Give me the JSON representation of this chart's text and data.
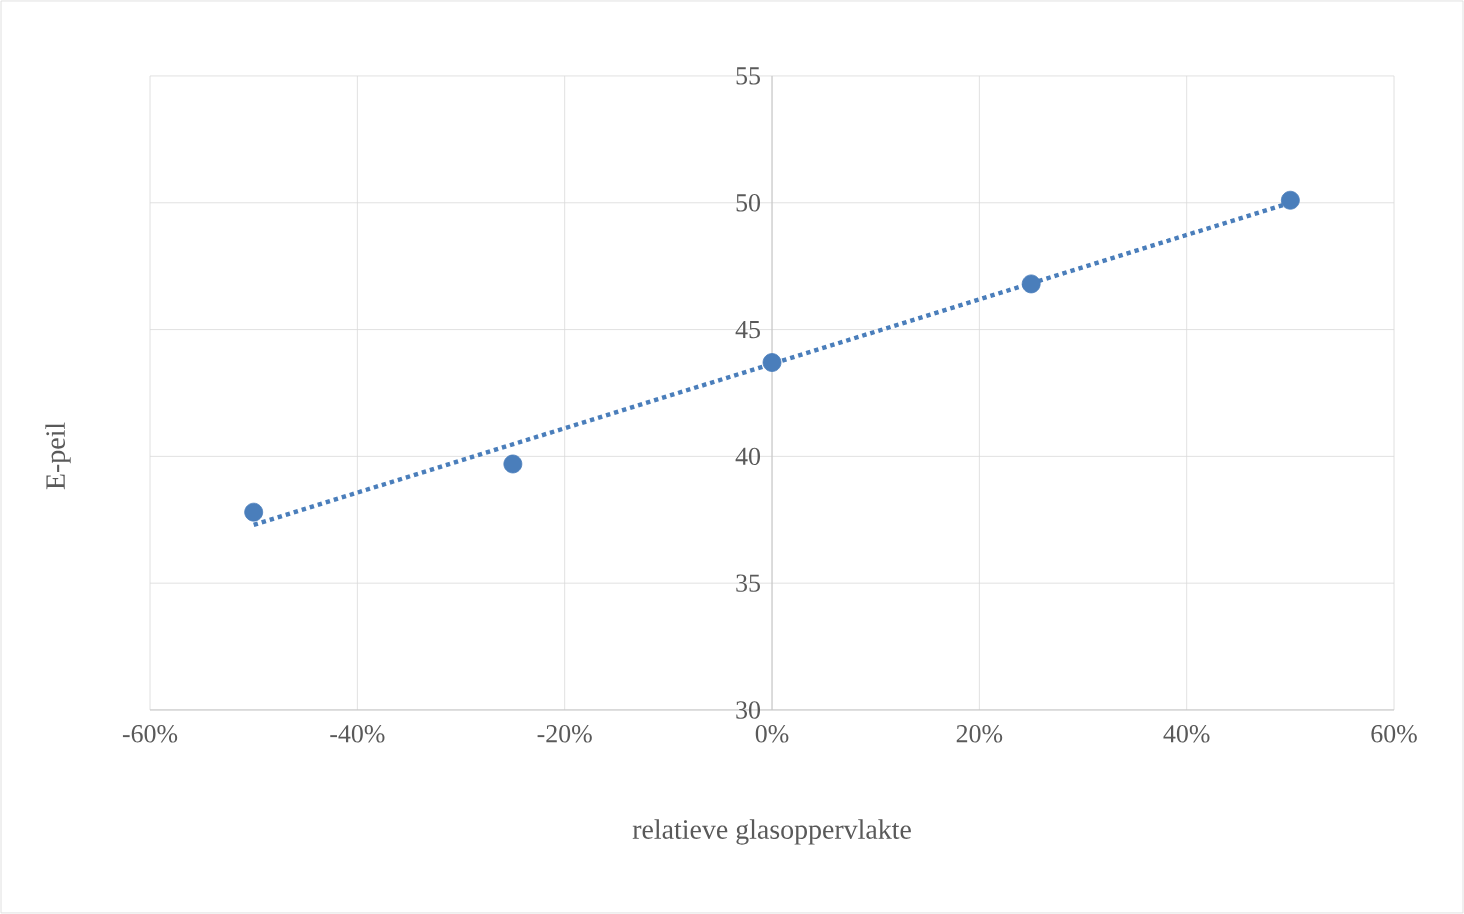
{
  "chart_data": {
    "type": "scatter",
    "xlabel": "relatieve glasoppervlakte",
    "ylabel": "E-peil",
    "xlim": [
      -60,
      60
    ],
    "xticks": [
      {
        "value": -60,
        "label": "-60%"
      },
      {
        "value": -40,
        "label": "-40%"
      },
      {
        "value": -20,
        "label": "-20%"
      },
      {
        "value": 0,
        "label": "0%"
      },
      {
        "value": 20,
        "label": "20%"
      },
      {
        "value": 40,
        "label": "40%"
      },
      {
        "value": 60,
        "label": "60%"
      }
    ],
    "ylim": [
      30,
      55
    ],
    "yticks": [
      30,
      35,
      40,
      45,
      50,
      55
    ],
    "grid": true,
    "series": [
      {
        "color": "#4a7ebb",
        "marker": "circle",
        "x": [
          -50,
          -25,
          0,
          25,
          50
        ],
        "values": [
          37.8,
          39.7,
          43.7,
          46.8,
          50.1
        ]
      },
      {
        "type": "line",
        "color": "#4a7ebb",
        "line_style": "dotted",
        "marker": "none",
        "x": [
          -50,
          50
        ],
        "values": [
          37.3,
          50.0
        ]
      }
    ]
  }
}
